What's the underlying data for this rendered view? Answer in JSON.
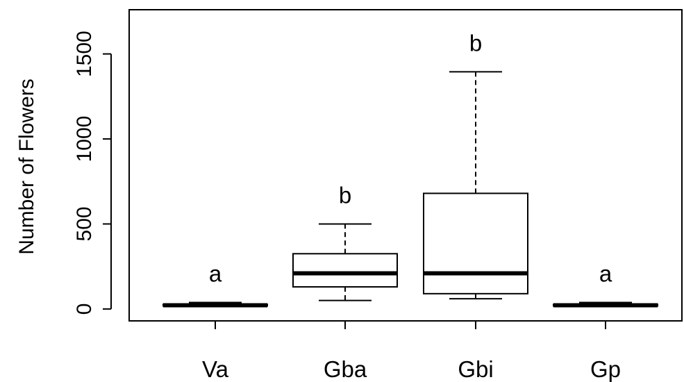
{
  "chart_data": {
    "type": "boxplot",
    "ylabel": "Number of Flowers",
    "ylim": [
      -70,
      1760
    ],
    "yticks": [
      {
        "value": 0,
        "label": "0"
      },
      {
        "value": 500,
        "label": "500"
      },
      {
        "value": 1000,
        "label": "1000"
      },
      {
        "value": 1500,
        "label": "1500"
      }
    ],
    "categories": [
      "Va",
      "Gba",
      "Gbi",
      "Gp"
    ],
    "boxes": [
      {
        "category": "Va",
        "min": 15,
        "q1": 18,
        "median": 22,
        "q3": 27,
        "max": 38,
        "group": "a"
      },
      {
        "category": "Gba",
        "min": 50,
        "q1": 130,
        "median": 210,
        "q3": 325,
        "max": 500,
        "group": "b"
      },
      {
        "category": "Gbi",
        "min": 60,
        "q1": 90,
        "median": 210,
        "q3": 680,
        "max": 1395,
        "group": "b"
      },
      {
        "category": "Gp",
        "min": 15,
        "q1": 18,
        "median": 22,
        "q3": 27,
        "max": 38,
        "group": "a"
      }
    ],
    "grid": false,
    "colors": {
      "stroke": "#000000",
      "fill": "#ffffff"
    }
  }
}
